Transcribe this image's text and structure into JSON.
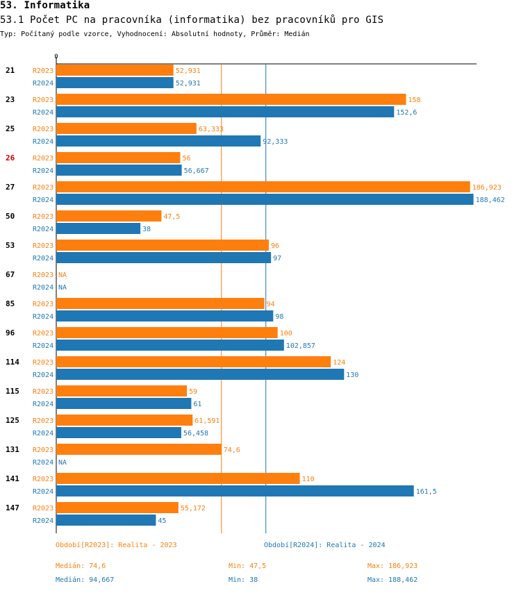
{
  "header": {
    "section": "53. Informatika",
    "title": "53.1 Počet PC na pracovníka (informatika) bez pracovníků pro GIS",
    "subtitle": "Typ: Počítaný podle vzorce, Vyhodnocení: Absolutní hodnoty, Průměr: Medián"
  },
  "colors": {
    "r2023": "#ff7f0e",
    "r2024": "#1f77b4",
    "highlight": "#cc0000"
  },
  "chart_data": {
    "type": "bar",
    "orientation": "horizontal",
    "axis_zero_label": "0",
    "xlim": [
      0,
      190
    ],
    "categories": [
      "21",
      "23",
      "25",
      "26",
      "27",
      "50",
      "53",
      "67",
      "85",
      "96",
      "114",
      "115",
      "125",
      "131",
      "141",
      "147"
    ],
    "highlight_category": "26",
    "series": [
      {
        "name": "R2023",
        "values": [
          52.931,
          158,
          63.333,
          56,
          186.923,
          47.5,
          96,
          null,
          94,
          100,
          124,
          59,
          61.591,
          74.6,
          110,
          55.172
        ],
        "labels": [
          "52,931",
          "158",
          "63,333",
          "56",
          "186,923",
          "47,5",
          "96",
          "NA",
          "94",
          "100",
          "124",
          "59",
          "61,591",
          "74,6",
          "110",
          "55,172"
        ]
      },
      {
        "name": "R2024",
        "values": [
          52.931,
          152.6,
          92.333,
          56.667,
          188.462,
          38,
          97,
          null,
          98,
          102.857,
          130,
          61,
          56.458,
          null,
          161.5,
          45
        ],
        "labels": [
          "52,931",
          "152,6",
          "92,333",
          "56,667",
          "188,462",
          "38",
          "97",
          "NA",
          "98",
          "102,857",
          "130",
          "61",
          "56,458",
          "NA",
          "161,5",
          "45"
        ]
      }
    ],
    "reference_lines": [
      {
        "series": "R2023",
        "value": 74.6
      },
      {
        "series": "R2024",
        "value": 94.667
      }
    ]
  },
  "legend": {
    "r2023": "Období[R2023]: Realita - 2023",
    "r2024": "Období[R2024]: Realita - 2024"
  },
  "stats": {
    "r2023": {
      "median": "Medián: 74,6",
      "min": "Min: 47,5",
      "max": "Max: 186,923"
    },
    "r2024": {
      "median": "Medián: 94,667",
      "min": "Min: 38",
      "max": "Max: 188,462"
    }
  }
}
